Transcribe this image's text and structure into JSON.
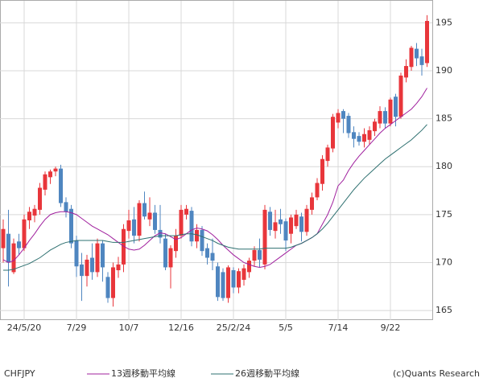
{
  "chart_data": {
    "type": "candlestick",
    "categories": [
      null,
      null,
      null,
      null,
      "24/5/20",
      null,
      null,
      null,
      null,
      null,
      null,
      null,
      null,
      null,
      "7/29",
      null,
      null,
      null,
      null,
      null,
      null,
      null,
      null,
      null,
      "10/7",
      null,
      null,
      null,
      null,
      null,
      null,
      null,
      null,
      null,
      "12/16",
      null,
      null,
      null,
      null,
      null,
      null,
      null,
      null,
      null,
      "25/2/24",
      null,
      null,
      null,
      null,
      null,
      null,
      null,
      null,
      null,
      "5/5",
      null,
      null,
      null,
      null,
      null,
      null,
      null,
      null,
      null,
      "7/14",
      null,
      null,
      null,
      null,
      null,
      null,
      null,
      null,
      null,
      "9/22",
      null,
      null,
      null,
      null,
      null,
      null,
      null
    ],
    "candles": {
      "name": "CHFJPY",
      "up_color": "#e8363b",
      "down_color": "#4f86c0",
      "open": [
        171.5,
        173,
        169,
        172.2,
        171.5,
        174.4,
        174.9,
        175.5,
        177.6,
        178.9,
        179.5,
        179.8,
        176.3,
        175.6,
        172.3,
        169.8,
        168.6,
        170.5,
        169,
        172,
        168.5,
        166.3,
        169.2,
        169.8,
        173.3,
        174.5,
        172.8,
        176.2,
        174.5,
        175.2,
        173.4,
        172.5,
        169.5,
        171.2,
        172.8,
        175,
        175.4,
        172.2,
        173.4,
        171.5,
        171,
        169.6,
        169,
        166.3,
        169.2,
        167.4,
        168.2,
        169,
        170.2,
        171.3,
        169.8,
        175.3,
        173.3,
        174.5,
        174.3,
        173,
        173.8,
        174.8,
        173.2,
        175.5,
        176.8,
        178.2,
        180.6,
        181.9,
        184.6,
        185.8,
        185.3,
        183.6,
        183.2,
        182.6,
        182.8,
        183.7,
        184.5,
        185.8,
        184.5,
        187.3,
        185.2,
        189.3,
        190.4,
        192.3,
        191.5,
        190.8
      ],
      "high": [
        174.5,
        175.5,
        172.5,
        173,
        175,
        175.8,
        176,
        178.3,
        179.5,
        179.7,
        180,
        180.2,
        176.8,
        176,
        172.8,
        171,
        170.8,
        172,
        172.5,
        172.3,
        169,
        170,
        170.6,
        174,
        175.5,
        175.8,
        176.5,
        177.4,
        176.8,
        176,
        176,
        173,
        171.8,
        173.5,
        176,
        176,
        175.8,
        174,
        173.8,
        172,
        172.5,
        170,
        169.4,
        169.7,
        169.5,
        169.4,
        169.8,
        170.5,
        171.7,
        172.5,
        176,
        175.8,
        175.5,
        175.6,
        174.6,
        175,
        175.5,
        175.2,
        176,
        177.3,
        178.8,
        181.2,
        182.3,
        185.5,
        186,
        186,
        185.6,
        184.2,
        183.6,
        184,
        184.2,
        185,
        186.3,
        186.2,
        187.2,
        187.6,
        189.8,
        191.2,
        192.6,
        192.9,
        192.3,
        195.8
      ],
      "low": [
        170,
        167.5,
        168.8,
        170.8,
        171.2,
        173.5,
        174.2,
        175,
        177,
        178.2,
        179,
        175.8,
        174.7,
        171.5,
        168.5,
        166,
        167.5,
        168.2,
        168.5,
        168,
        165.8,
        165.4,
        168.4,
        169,
        172.5,
        172,
        172.2,
        174.5,
        173.8,
        173,
        172,
        169.2,
        167.3,
        170.5,
        172.5,
        174.5,
        171.7,
        171.5,
        170.7,
        169.8,
        169.2,
        166,
        166,
        165.8,
        166.8,
        166.8,
        167.6,
        168.4,
        169.6,
        169.5,
        169.3,
        172.8,
        172.5,
        173,
        171.2,
        172,
        173.5,
        172.2,
        172.8,
        175,
        176.5,
        177.5,
        180,
        181.5,
        184,
        183.5,
        183,
        182,
        182.2,
        182,
        182.3,
        183.2,
        184,
        184,
        184.2,
        184.2,
        185,
        188.8,
        190,
        190.5,
        189.5,
        190.4
      ],
      "close": [
        173.5,
        170,
        172,
        171.5,
        174.5,
        175.3,
        175.6,
        177.8,
        179.2,
        179.5,
        179.8,
        176.2,
        175.3,
        172,
        169.6,
        168.6,
        170.3,
        169,
        172,
        169.5,
        166.3,
        169.5,
        169.8,
        173.5,
        174.4,
        172.8,
        176.2,
        174.8,
        175.2,
        173.4,
        172.6,
        169.5,
        171.5,
        172.8,
        175.5,
        175.6,
        172.2,
        173.4,
        171.2,
        170.5,
        170.2,
        166.4,
        166.3,
        169.5,
        167.4,
        169.1,
        169.4,
        170.2,
        171.3,
        170.3,
        175.5,
        173.4,
        174.2,
        174,
        172.3,
        174.7,
        175,
        173.2,
        175.6,
        176.8,
        178.3,
        180.8,
        182,
        185.2,
        185.6,
        185,
        183.5,
        182.9,
        182.6,
        183.4,
        183.8,
        184.7,
        185.8,
        184.5,
        187,
        185.2,
        189.5,
        190.5,
        192.4,
        191.3,
        190.6,
        195.2
      ]
    },
    "series": [
      {
        "name": "13週移動平均線",
        "color": "#a0209e",
        "values": [
          170.3,
          170.0,
          170.2,
          170.8,
          171.5,
          172.3,
          173,
          173.8,
          174.5,
          175,
          175.2,
          175.3,
          175.3,
          175.2,
          175,
          174.6,
          174.2,
          173.8,
          173.5,
          173.2,
          172.9,
          172.5,
          172.1,
          171.7,
          171.4,
          171.3,
          171.4,
          171.8,
          172.3,
          172.8,
          173.1,
          173.0,
          172.7,
          172.4,
          172.6,
          173.0,
          173.4,
          173.6,
          173.5,
          173.3,
          172.9,
          172.4,
          171.8,
          171.3,
          170.8,
          170.4,
          170.0,
          169.8,
          169.6,
          169.5,
          169.6,
          169.8,
          170.2,
          170.6,
          171.0,
          171.4,
          171.8,
          172.0,
          172.3,
          172.6,
          173.0,
          174,
          175,
          176.3,
          178,
          178.6,
          179.6,
          180.4,
          181.1,
          181.7,
          182.3,
          182.9,
          183.5,
          184,
          184.4,
          184.8,
          185.2,
          185.6,
          186.0,
          186.6,
          187.3,
          188.2
        ]
      },
      {
        "name": "26週移動平均線",
        "color": "#2e7070",
        "values": [
          169.2,
          169.2,
          169.3,
          169.5,
          169.7,
          169.9,
          170.2,
          170.5,
          170.9,
          171.3,
          171.6,
          171.9,
          172.1,
          172.2,
          172.3,
          172.3,
          172.3,
          172.3,
          172.3,
          172.3,
          172.2,
          172.1,
          172.1,
          172.1,
          172.2,
          172.3,
          172.4,
          172.5,
          172.6,
          172.7,
          172.8,
          172.8,
          172.8,
          172.8,
          172.9,
          173.0,
          173.0,
          172.9,
          172.7,
          172.5,
          172.3,
          172.0,
          171.8,
          171.6,
          171.5,
          171.4,
          171.4,
          171.4,
          171.4,
          171.4,
          171.5,
          171.5,
          171.5,
          171.5,
          171.5,
          171.6,
          171.8,
          172.0,
          172.3,
          172.6,
          173.0,
          173.5,
          174.1,
          174.8,
          175.5,
          176.2,
          176.9,
          177.6,
          178.2,
          178.8,
          179.3,
          179.8,
          180.3,
          180.8,
          181.2,
          181.6,
          182.0,
          182.4,
          182.8,
          183.3,
          183.8,
          184.4
        ]
      }
    ],
    "ylim": [
      164.0,
      197.3
    ],
    "yticks": [
      165,
      170,
      175,
      180,
      185,
      190,
      195
    ],
    "grid": true,
    "credit": "(c)Quants Research"
  }
}
